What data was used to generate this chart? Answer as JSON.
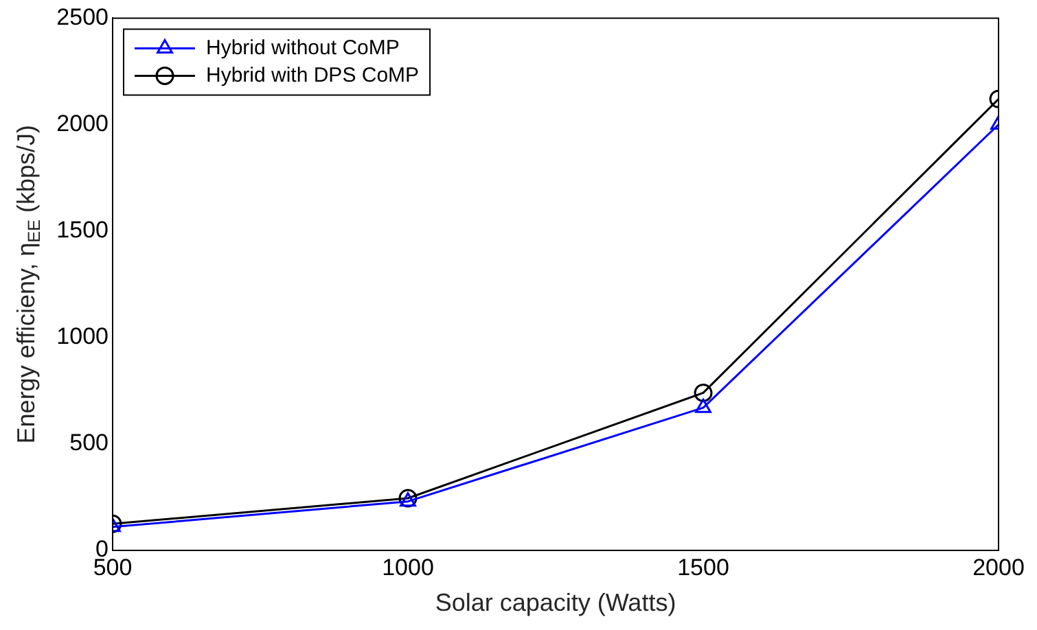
{
  "chart_data": {
    "type": "line",
    "xlabel": "Solar capacity (Watts)",
    "ylabel": "Energy efficieny, η$_{EE}$ (kbps/J)",
    "x": [
      500,
      1000,
      1500,
      2000
    ],
    "series": [
      {
        "name": "Hybrid without CoMP",
        "color": "#0000ff",
        "marker": "triangle",
        "values": [
          110,
          230,
          670,
          2000
        ]
      },
      {
        "name": "Hybrid with DPS CoMP",
        "color": "#000000",
        "marker": "circle",
        "values": [
          125,
          245,
          740,
          2120
        ]
      }
    ],
    "xlim": [
      500,
      2000
    ],
    "xticks": [
      500,
      1000,
      1500,
      2000
    ],
    "ylim": [
      0,
      2500
    ],
    "yticks": [
      0,
      500,
      1000,
      1500,
      2000,
      2500
    ],
    "grid": false,
    "legend": "top left",
    "line_style": "solid"
  }
}
